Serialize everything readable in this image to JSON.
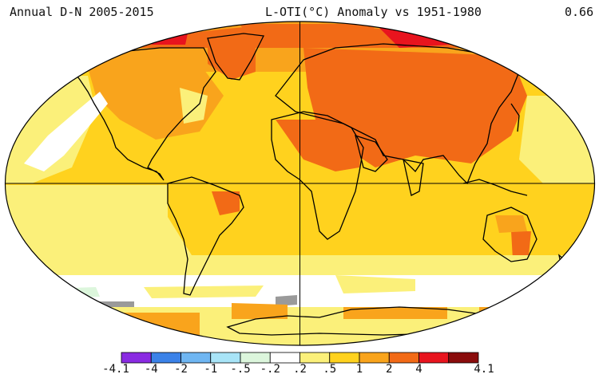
{
  "header": {
    "left": "Annual D-N 2005-2015",
    "middle": "L-OTI(°C) Anomaly vs 1951-1980",
    "right": "0.66"
  },
  "colorbar": {
    "colors": [
      "#8a2be2",
      "#3b82e8",
      "#6fb6f2",
      "#a8e4f7",
      "#dcf6dc",
      "#ffffff",
      "#fbf07a",
      "#ffd21e",
      "#f9a41c",
      "#f26a16",
      "#e8141e",
      "#8a0c0c"
    ],
    "tick_labels": [
      "-4.1",
      "-4",
      "-2",
      "-1",
      "-.5",
      "-.2",
      ".2",
      ".5",
      "1",
      "2",
      "4",
      "4.1"
    ]
  },
  "palette": {
    "cool_white": "#ffffff",
    "light_yellow": "#fbf07a",
    "yellow": "#ffd21e",
    "orange": "#f9a41c",
    "dark_orange": "#f26a16",
    "red": "#e8141e",
    "no_data": "#9a9a9a",
    "pale_green": "#dcf6dc"
  }
}
